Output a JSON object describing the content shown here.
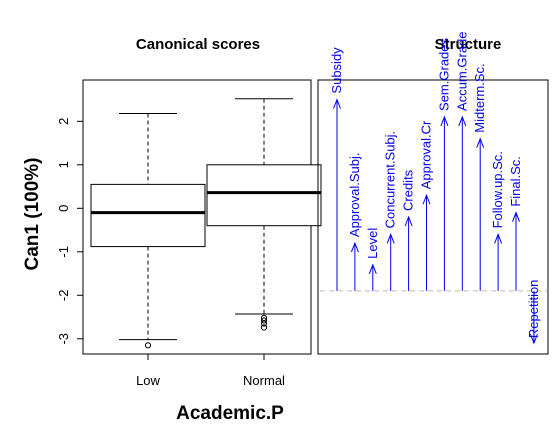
{
  "chart_data": [
    {
      "type": "boxplot",
      "title": "Canonical scores",
      "xlabel": "Academic.P",
      "ylabel": "Can1 (100%)",
      "ylim": [
        -3.35,
        2.95
      ],
      "yticks": [
        -3,
        -2,
        -1,
        0,
        1,
        2
      ],
      "yticklabels": [
        "-3",
        "-2",
        "-1",
        "0",
        "1",
        "2"
      ],
      "categories": [
        "Low",
        "Normal"
      ],
      "boxes": [
        {
          "category": "Low",
          "whisker_low": -3.02,
          "q1": -0.88,
          "median": -0.1,
          "q3": 0.55,
          "whisker_high": 2.18,
          "outliers": [
            -3.15
          ]
        },
        {
          "category": "Normal",
          "whisker_low": -2.43,
          "q1": -0.4,
          "median": 0.36,
          "q3": 1.0,
          "whisker_high": 2.52,
          "outliers": [
            -2.52,
            -2.58,
            -2.65,
            -2.74
          ]
        }
      ]
    },
    {
      "type": "vector",
      "title": "Structure",
      "baseline": -1.9,
      "vectors": [
        {
          "label": "Subsidy",
          "value": 2.5
        },
        {
          "label": "Approval.Subj.",
          "value": -0.8
        },
        {
          "label": "Level",
          "value": -1.3
        },
        {
          "label": "Concurrent.Subj.",
          "value": -0.6
        },
        {
          "label": "Credits",
          "value": -0.2
        },
        {
          "label": "Approval.Cr",
          "value": 0.3
        },
        {
          "label": "Sem.Grades",
          "value": 2.1
        },
        {
          "label": "Accum.Grade",
          "value": 2.1
        },
        {
          "label": "Midterm.Sc.",
          "value": 1.6
        },
        {
          "label": "Follow.up.Sc.",
          "value": -0.6
        },
        {
          "label": "Final.Sc.",
          "value": -0.1
        },
        {
          "label": "Repetition",
          "value": -3.1
        }
      ],
      "colors": {
        "vector": "#0000ee",
        "baseline": "#bbbbbb"
      }
    }
  ]
}
